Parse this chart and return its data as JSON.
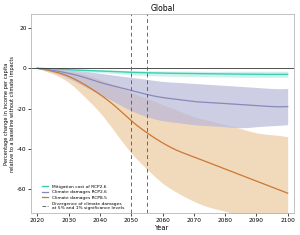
{
  "title": "Global",
  "xlabel": "Year",
  "ylabel": "Percentage change in income per capita\nrelative to a baseline without climate impacts",
  "years": [
    2020,
    2025,
    2030,
    2035,
    2040,
    2045,
    2050,
    2055,
    2060,
    2065,
    2070,
    2075,
    2080,
    2085,
    2090,
    2095,
    2100
  ],
  "xlim": [
    2018,
    2102
  ],
  "ylim": [
    -72,
    27
  ],
  "yticks": [
    -60,
    -40,
    -20,
    0,
    20
  ],
  "xticks": [
    2020,
    2030,
    2040,
    2050,
    2060,
    2070,
    2080,
    2090,
    2100
  ],
  "divergence_years": [
    2050,
    2055
  ],
  "mitigation_mean": [
    0,
    -0.3,
    -0.7,
    -1.0,
    -1.3,
    -1.6,
    -2.0,
    -2.2,
    -2.4,
    -2.5,
    -2.6,
    -2.7,
    -2.8,
    -2.9,
    -3.0,
    -3.0,
    -3.0
  ],
  "mitigation_low": [
    0,
    -0.1,
    -0.3,
    -0.5,
    -0.7,
    -0.9,
    -1.1,
    -1.2,
    -1.3,
    -1.4,
    -1.4,
    -1.5,
    -1.5,
    -1.5,
    -1.5,
    -1.5,
    -1.5
  ],
  "mitigation_high": [
    0,
    -0.5,
    -1.1,
    -1.6,
    -2.1,
    -2.6,
    -3.2,
    -3.5,
    -3.8,
    -4.0,
    -4.1,
    -4.2,
    -4.3,
    -4.4,
    -4.5,
    -4.5,
    -4.5
  ],
  "rcp26_mean": [
    0,
    -1,
    -2.5,
    -4.5,
    -7,
    -9,
    -11,
    -13,
    -14.5,
    -15.5,
    -16.5,
    -17,
    -17.5,
    -18,
    -18.5,
    -19,
    -19
  ],
  "rcp26_low": [
    0,
    -0.3,
    -0.8,
    -1.5,
    -2.5,
    -3.5,
    -4.5,
    -5.5,
    -6.5,
    -7,
    -7.5,
    -8,
    -8.5,
    -9,
    -9.5,
    -10,
    -10
  ],
  "rcp26_high": [
    0,
    -2,
    -5,
    -9,
    -13,
    -17,
    -21,
    -24,
    -26,
    -27,
    -28,
    -28.5,
    -29,
    -29.5,
    -29,
    -28.5,
    -28
  ],
  "rcp85_mean": [
    0,
    -1.5,
    -4,
    -8,
    -13,
    -19,
    -26,
    -32,
    -37,
    -41,
    -44,
    -47,
    -50,
    -53,
    -56,
    -59,
    -62
  ],
  "rcp85_low": [
    0,
    -0.6,
    -1.5,
    -3,
    -5.5,
    -8.5,
    -12,
    -15,
    -18,
    -21,
    -24,
    -26,
    -28,
    -30,
    -32,
    -33,
    -34
  ],
  "rcp85_high": [
    0,
    -2.8,
    -7,
    -14,
    -22,
    -32,
    -42,
    -50,
    -57,
    -62,
    -66,
    -69,
    -71,
    -73,
    -73,
    -73,
    -72
  ],
  "color_mitigation": "#3ecfb2",
  "color_rcp26": "#8888bb",
  "color_rcp85": "#cc7733",
  "color_rcp26_fill": "#b8b8d8",
  "color_rcp85_fill": "#e8c090",
  "background_color": "#ffffff"
}
